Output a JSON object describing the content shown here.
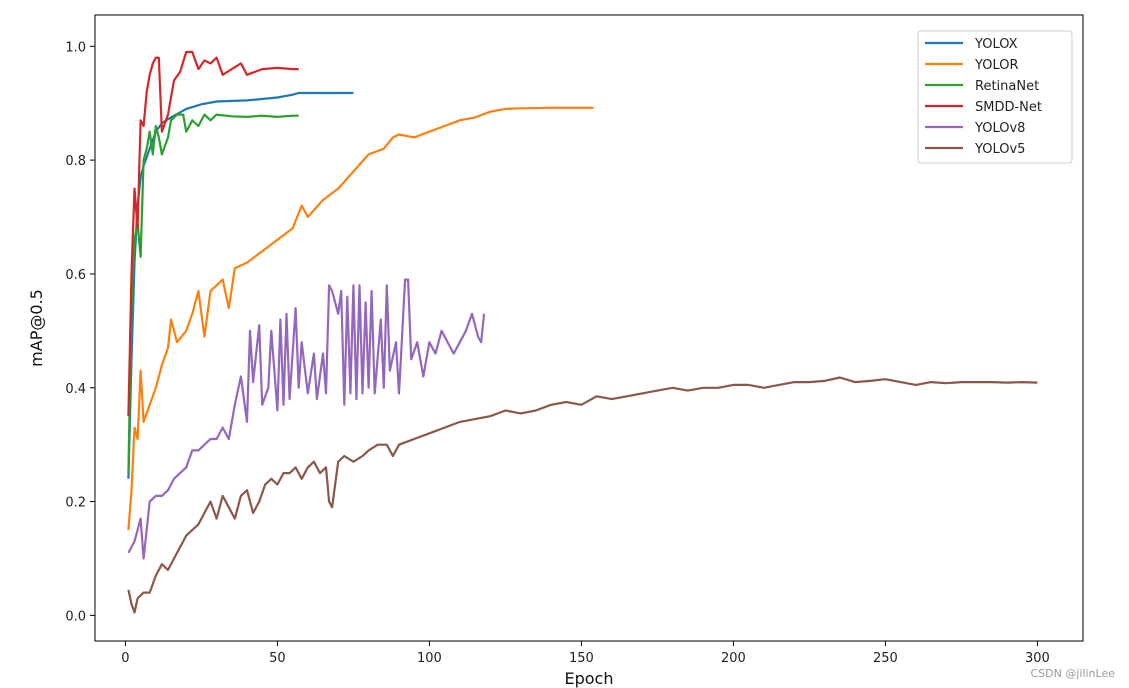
{
  "chart_data": {
    "type": "line",
    "title": "",
    "xlabel": "Epoch",
    "ylabel": "mAP@0.5",
    "xlim": [
      -10,
      315
    ],
    "ylim": [
      -0.045,
      1.055
    ],
    "xticks": [
      0,
      50,
      100,
      150,
      200,
      250,
      300
    ],
    "yticks": [
      0.0,
      0.2,
      0.4,
      0.6,
      0.8,
      1.0
    ],
    "grid": false,
    "legend_position": "top-right",
    "series": [
      {
        "name": "YOLOX",
        "color": "#1f77b4",
        "points": [
          [
            1,
            0.24
          ],
          [
            2,
            0.45
          ],
          [
            3,
            0.62
          ],
          [
            4,
            0.72
          ],
          [
            5,
            0.77
          ],
          [
            6,
            0.79
          ],
          [
            8,
            0.82
          ],
          [
            10,
            0.85
          ],
          [
            12,
            0.865
          ],
          [
            15,
            0.875
          ],
          [
            20,
            0.89
          ],
          [
            25,
            0.898
          ],
          [
            30,
            0.903
          ],
          [
            40,
            0.905
          ],
          [
            50,
            0.91
          ],
          [
            55,
            0.915
          ],
          [
            57,
            0.918
          ],
          [
            60,
            0.918
          ],
          [
            70,
            0.918
          ],
          [
            75,
            0.918
          ]
        ]
      },
      {
        "name": "YOLOR",
        "color": "#ff7f0e",
        "points": [
          [
            1,
            0.15
          ],
          [
            2,
            0.22
          ],
          [
            3,
            0.33
          ],
          [
            4,
            0.31
          ],
          [
            5,
            0.43
          ],
          [
            6,
            0.34
          ],
          [
            8,
            0.37
          ],
          [
            10,
            0.4
          ],
          [
            12,
            0.44
          ],
          [
            14,
            0.47
          ],
          [
            15,
            0.52
          ],
          [
            17,
            0.48
          ],
          [
            20,
            0.5
          ],
          [
            22,
            0.53
          ],
          [
            24,
            0.57
          ],
          [
            26,
            0.49
          ],
          [
            28,
            0.57
          ],
          [
            30,
            0.58
          ],
          [
            32,
            0.59
          ],
          [
            34,
            0.54
          ],
          [
            36,
            0.61
          ],
          [
            40,
            0.62
          ],
          [
            45,
            0.64
          ],
          [
            50,
            0.66
          ],
          [
            55,
            0.68
          ],
          [
            58,
            0.72
          ],
          [
            60,
            0.7
          ],
          [
            65,
            0.73
          ],
          [
            70,
            0.75
          ],
          [
            75,
            0.78
          ],
          [
            80,
            0.81
          ],
          [
            85,
            0.82
          ],
          [
            88,
            0.84
          ],
          [
            90,
            0.845
          ],
          [
            95,
            0.84
          ],
          [
            100,
            0.85
          ],
          [
            105,
            0.86
          ],
          [
            110,
            0.87
          ],
          [
            115,
            0.875
          ],
          [
            120,
            0.885
          ],
          [
            125,
            0.89
          ],
          [
            130,
            0.891
          ],
          [
            140,
            0.892
          ],
          [
            150,
            0.892
          ],
          [
            154,
            0.892
          ]
        ]
      },
      {
        "name": "RetinaNet",
        "color": "#2ca02c",
        "points": [
          [
            1,
            0.25
          ],
          [
            2,
            0.55
          ],
          [
            3,
            0.66
          ],
          [
            4,
            0.69
          ],
          [
            5,
            0.63
          ],
          [
            6,
            0.8
          ],
          [
            7,
            0.82
          ],
          [
            8,
            0.85
          ],
          [
            9,
            0.81
          ],
          [
            10,
            0.86
          ],
          [
            11,
            0.84
          ],
          [
            12,
            0.81
          ],
          [
            14,
            0.84
          ],
          [
            15,
            0.87
          ],
          [
            17,
            0.88
          ],
          [
            19,
            0.88
          ],
          [
            20,
            0.85
          ],
          [
            22,
            0.87
          ],
          [
            24,
            0.86
          ],
          [
            26,
            0.88
          ],
          [
            28,
            0.87
          ],
          [
            30,
            0.88
          ],
          [
            35,
            0.877
          ],
          [
            40,
            0.876
          ],
          [
            45,
            0.878
          ],
          [
            50,
            0.876
          ],
          [
            55,
            0.878
          ],
          [
            57,
            0.878
          ]
        ]
      },
      {
        "name": "SMDD-Net",
        "color": "#d62728",
        "points": [
          [
            1,
            0.35
          ],
          [
            2,
            0.6
          ],
          [
            3,
            0.75
          ],
          [
            4,
            0.68
          ],
          [
            5,
            0.87
          ],
          [
            6,
            0.86
          ],
          [
            7,
            0.92
          ],
          [
            8,
            0.95
          ],
          [
            9,
            0.97
          ],
          [
            10,
            0.98
          ],
          [
            11,
            0.98
          ],
          [
            12,
            0.85
          ],
          [
            14,
            0.88
          ],
          [
            16,
            0.94
          ],
          [
            18,
            0.955
          ],
          [
            20,
            0.99
          ],
          [
            22,
            0.99
          ],
          [
            24,
            0.96
          ],
          [
            26,
            0.975
          ],
          [
            28,
            0.97
          ],
          [
            30,
            0.98
          ],
          [
            32,
            0.95
          ],
          [
            35,
            0.96
          ],
          [
            38,
            0.97
          ],
          [
            40,
            0.95
          ],
          [
            45,
            0.96
          ],
          [
            50,
            0.962
          ],
          [
            55,
            0.96
          ],
          [
            57,
            0.96
          ]
        ]
      },
      {
        "name": "YOLOv8",
        "color": "#9467bd",
        "points": [
          [
            1,
            0.11
          ],
          [
            3,
            0.13
          ],
          [
            5,
            0.17
          ],
          [
            6,
            0.1
          ],
          [
            8,
            0.2
          ],
          [
            10,
            0.21
          ],
          [
            12,
            0.21
          ],
          [
            14,
            0.22
          ],
          [
            16,
            0.24
          ],
          [
            18,
            0.25
          ],
          [
            20,
            0.26
          ],
          [
            22,
            0.29
          ],
          [
            24,
            0.29
          ],
          [
            26,
            0.3
          ],
          [
            28,
            0.31
          ],
          [
            30,
            0.31
          ],
          [
            32,
            0.33
          ],
          [
            34,
            0.31
          ],
          [
            36,
            0.37
          ],
          [
            38,
            0.42
          ],
          [
            40,
            0.34
          ],
          [
            41,
            0.5
          ],
          [
            42,
            0.41
          ],
          [
            44,
            0.51
          ],
          [
            45,
            0.37
          ],
          [
            47,
            0.4
          ],
          [
            48,
            0.5
          ],
          [
            50,
            0.36
          ],
          [
            51,
            0.52
          ],
          [
            52,
            0.37
          ],
          [
            53,
            0.53
          ],
          [
            54,
            0.38
          ],
          [
            56,
            0.54
          ],
          [
            57,
            0.4
          ],
          [
            58,
            0.48
          ],
          [
            60,
            0.39
          ],
          [
            62,
            0.46
          ],
          [
            63,
            0.38
          ],
          [
            65,
            0.46
          ],
          [
            66,
            0.39
          ],
          [
            67,
            0.58
          ],
          [
            68,
            0.57
          ],
          [
            70,
            0.53
          ],
          [
            71,
            0.57
          ],
          [
            72,
            0.37
          ],
          [
            73,
            0.56
          ],
          [
            74,
            0.39
          ],
          [
            75,
            0.58
          ],
          [
            76,
            0.38
          ],
          [
            77,
            0.58
          ],
          [
            78,
            0.39
          ],
          [
            79,
            0.55
          ],
          [
            80,
            0.4
          ],
          [
            81,
            0.57
          ],
          [
            82,
            0.39
          ],
          [
            84,
            0.52
          ],
          [
            85,
            0.4
          ],
          [
            86,
            0.58
          ],
          [
            87,
            0.43
          ],
          [
            89,
            0.48
          ],
          [
            90,
            0.39
          ],
          [
            92,
            0.59
          ],
          [
            93,
            0.59
          ],
          [
            94,
            0.45
          ],
          [
            96,
            0.48
          ],
          [
            98,
            0.42
          ],
          [
            100,
            0.48
          ],
          [
            102,
            0.46
          ],
          [
            104,
            0.5
          ],
          [
            106,
            0.48
          ],
          [
            108,
            0.46
          ],
          [
            110,
            0.48
          ],
          [
            112,
            0.5
          ],
          [
            114,
            0.53
          ],
          [
            116,
            0.49
          ],
          [
            117,
            0.48
          ],
          [
            118,
            0.53
          ]
        ]
      },
      {
        "name": "YOLOv5",
        "color": "#8c564b",
        "points": [
          [
            1,
            0.045
          ],
          [
            2,
            0.02
          ],
          [
            3,
            0.005
          ],
          [
            4,
            0.03
          ],
          [
            6,
            0.04
          ],
          [
            8,
            0.04
          ],
          [
            10,
            0.07
          ],
          [
            12,
            0.09
          ],
          [
            14,
            0.08
          ],
          [
            16,
            0.1
          ],
          [
            18,
            0.12
          ],
          [
            20,
            0.14
          ],
          [
            22,
            0.15
          ],
          [
            24,
            0.16
          ],
          [
            26,
            0.18
          ],
          [
            28,
            0.2
          ],
          [
            30,
            0.17
          ],
          [
            32,
            0.21
          ],
          [
            34,
            0.19
          ],
          [
            36,
            0.17
          ],
          [
            38,
            0.21
          ],
          [
            40,
            0.22
          ],
          [
            42,
            0.18
          ],
          [
            44,
            0.2
          ],
          [
            46,
            0.23
          ],
          [
            48,
            0.24
          ],
          [
            50,
            0.23
          ],
          [
            52,
            0.25
          ],
          [
            54,
            0.25
          ],
          [
            56,
            0.26
          ],
          [
            58,
            0.24
          ],
          [
            60,
            0.26
          ],
          [
            62,
            0.27
          ],
          [
            64,
            0.25
          ],
          [
            66,
            0.26
          ],
          [
            67,
            0.2
          ],
          [
            68,
            0.19
          ],
          [
            70,
            0.27
          ],
          [
            72,
            0.28
          ],
          [
            75,
            0.27
          ],
          [
            78,
            0.28
          ],
          [
            80,
            0.29
          ],
          [
            83,
            0.3
          ],
          [
            86,
            0.3
          ],
          [
            88,
            0.28
          ],
          [
            90,
            0.3
          ],
          [
            95,
            0.31
          ],
          [
            100,
            0.32
          ],
          [
            105,
            0.33
          ],
          [
            110,
            0.34
          ],
          [
            115,
            0.345
          ],
          [
            120,
            0.35
          ],
          [
            125,
            0.36
          ],
          [
            130,
            0.355
          ],
          [
            135,
            0.36
          ],
          [
            140,
            0.37
          ],
          [
            145,
            0.375
          ],
          [
            150,
            0.37
          ],
          [
            155,
            0.385
          ],
          [
            160,
            0.38
          ],
          [
            165,
            0.385
          ],
          [
            170,
            0.39
          ],
          [
            175,
            0.395
          ],
          [
            180,
            0.4
          ],
          [
            185,
            0.395
          ],
          [
            190,
            0.4
          ],
          [
            195,
            0.4
          ],
          [
            200,
            0.405
          ],
          [
            205,
            0.405
          ],
          [
            210,
            0.4
          ],
          [
            215,
            0.405
          ],
          [
            220,
            0.41
          ],
          [
            225,
            0.41
          ],
          [
            230,
            0.412
          ],
          [
            235,
            0.418
          ],
          [
            240,
            0.41
          ],
          [
            245,
            0.412
          ],
          [
            250,
            0.415
          ],
          [
            255,
            0.41
          ],
          [
            260,
            0.405
          ],
          [
            265,
            0.41
          ],
          [
            270,
            0.408
          ],
          [
            275,
            0.41
          ],
          [
            280,
            0.41
          ],
          [
            285,
            0.41
          ],
          [
            290,
            0.409
          ],
          [
            295,
            0.41
          ],
          [
            300,
            0.409
          ]
        ]
      }
    ]
  },
  "watermark": "CSDN @jilinLee"
}
